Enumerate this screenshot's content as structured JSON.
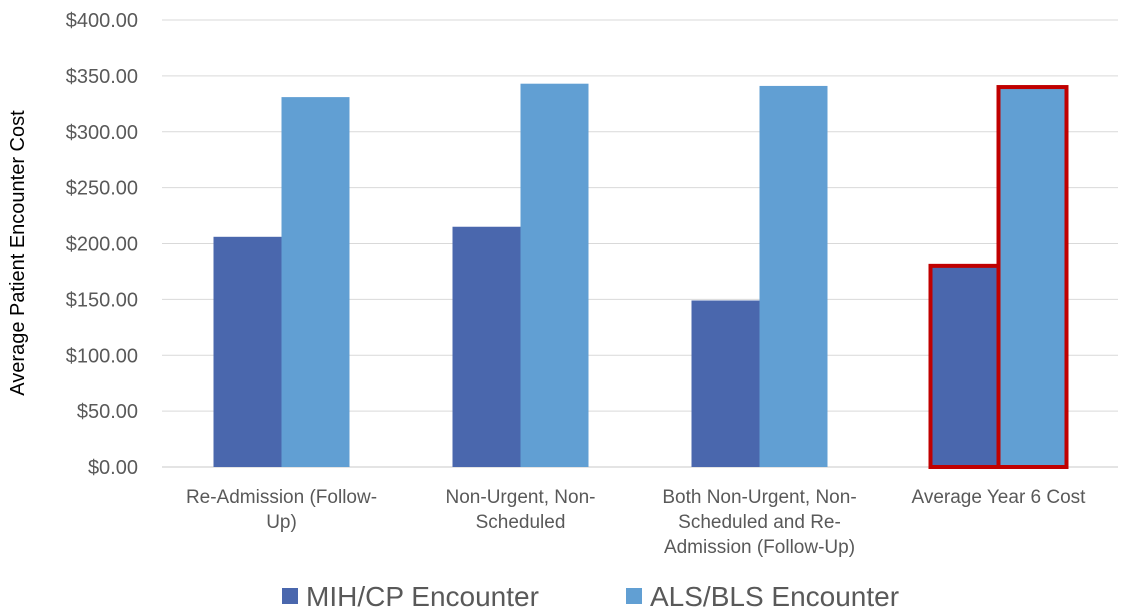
{
  "chart_data": {
    "type": "bar",
    "title": "",
    "xlabel": "",
    "ylabel": "Average Patient Encounter Cost",
    "ylim": [
      0,
      400
    ],
    "yticks": [
      "$0.00",
      "$50.00",
      "$100.00",
      "$150.00",
      "$200.00",
      "$250.00",
      "$300.00",
      "$350.00",
      "$400.00"
    ],
    "ytick_values": [
      0,
      50,
      100,
      150,
      200,
      250,
      300,
      350,
      400
    ],
    "categories": [
      [
        "Re-Admission (Follow-",
        "Up)"
      ],
      [
        "Non-Urgent, Non-",
        "Scheduled"
      ],
      [
        "Both Non-Urgent, Non-",
        "Scheduled and Re-",
        "Admission (Follow-Up)"
      ],
      [
        "Average Year 6 Cost"
      ]
    ],
    "series": [
      {
        "name": "MIH/CP Encounter",
        "color": "#4a67ad",
        "values": [
          206,
          215,
          149,
          180
        ]
      },
      {
        "name": "ALS/BLS Encounter",
        "color": "#619fd3",
        "values": [
          331,
          343,
          341,
          340
        ]
      }
    ],
    "highlight": {
      "category_index": 3,
      "outline_color": "#c00000"
    },
    "grid": true,
    "legend": "bottom"
  }
}
